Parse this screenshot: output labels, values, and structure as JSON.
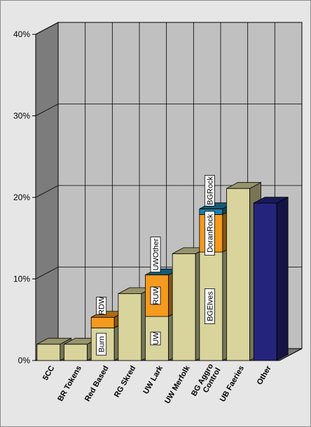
{
  "chart_data": {
    "type": "bar",
    "stacked": true,
    "three_d": true,
    "categories": [
      "5CC",
      "BR Tokens",
      "Red Based",
      "RG Skred",
      "UW Lark",
      "UW Merfolk",
      "BG Aggro Control",
      "UB Faeries",
      "Other"
    ],
    "bars": [
      {
        "category": "5CC",
        "segments": [
          {
            "label": "",
            "value": 2.0,
            "color": "#d8d49c"
          }
        ]
      },
      {
        "category": "BR Tokens",
        "segments": [
          {
            "label": "",
            "value": 2.0,
            "color": "#d8d49c"
          }
        ]
      },
      {
        "category": "Red Based",
        "segments": [
          {
            "label": "Burn",
            "value": 4.0,
            "color": "#d8d49c"
          },
          {
            "label": "RDW",
            "value": 1.3,
            "color": "#f49a1e"
          }
        ]
      },
      {
        "category": "RG Skred",
        "segments": [
          {
            "label": "",
            "value": 8.2,
            "color": "#d8d49c"
          }
        ]
      },
      {
        "category": "UW Lark",
        "segments": [
          {
            "label": "UW",
            "value": 5.4,
            "color": "#d8d49c"
          },
          {
            "label": "RUW",
            "value": 5.1,
            "color": "#f49a1e"
          },
          {
            "label": "UWOther",
            "value": 0.0,
            "color": "#1e7fa8"
          }
        ]
      },
      {
        "category": "UW Merfolk",
        "segments": [
          {
            "label": "",
            "value": 13.1,
            "color": "#d8d49c"
          }
        ]
      },
      {
        "category": "BG Aggro Control",
        "segments": [
          {
            "label": "BGElves",
            "value": 13.3,
            "color": "#d8d49c"
          },
          {
            "label": "DoranRock",
            "value": 4.6,
            "color": "#f49a1e"
          },
          {
            "label": "BGRock",
            "value": 0.7,
            "color": "#1e7fa8"
          }
        ]
      },
      {
        "category": "UB Faeries",
        "segments": [
          {
            "label": "",
            "value": 21.1,
            "color": "#d8d49c"
          }
        ]
      },
      {
        "category": "Other",
        "segments": [
          {
            "label": "",
            "value": 19.3,
            "color": "#24247c"
          }
        ]
      }
    ],
    "y_ticks": [
      "0%",
      "10%",
      "20%",
      "30%",
      "40%"
    ],
    "ylim": [
      0,
      40
    ],
    "grid": true,
    "legend": "none",
    "title": "",
    "xlabel": "",
    "ylabel": ""
  },
  "colors": {
    "chart_background": "#e6e6e6",
    "back_wall": "#c0c0c0",
    "side_wall": "#7c7c7c",
    "floor": "#7c7c7c",
    "grid": "#000000"
  }
}
